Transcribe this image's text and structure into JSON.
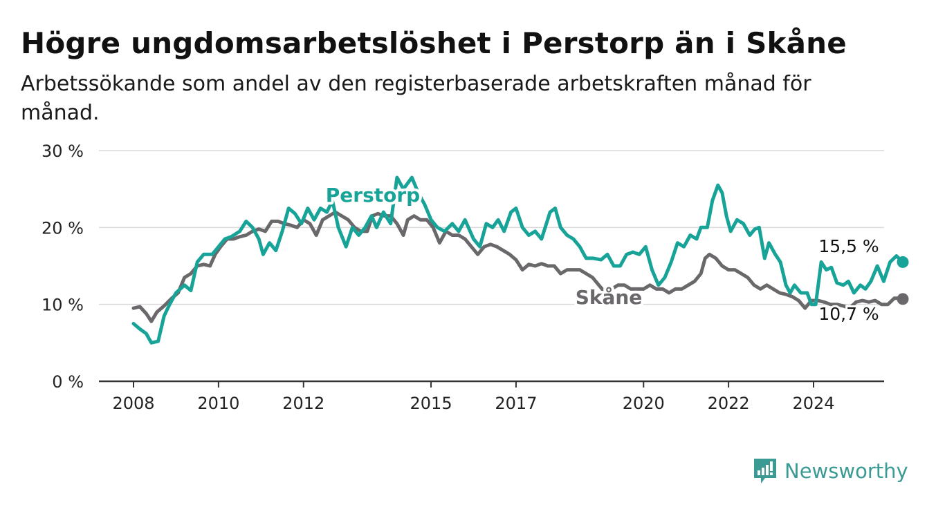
{
  "title": "Högre ungdomsarbetslöshet i Perstorp än i Skåne",
  "subtitle": "Arbetssökande som andel av den registerbaserade arbetskraften månad för månad.",
  "brand": {
    "name": "Newsworthy"
  },
  "colors": {
    "perstorp": "#17a397",
    "skane": "#6b686c",
    "grid": "#d9d9d9",
    "axis": "#333333"
  },
  "chart_data": {
    "type": "line",
    "ylim": [
      0,
      30
    ],
    "y_ticks": [
      0,
      10,
      20,
      30
    ],
    "y_tick_labels": [
      "0 %",
      "10 %",
      "20 %",
      "30 %"
    ],
    "x_ticks": [
      2008,
      2010,
      2012,
      2015,
      2017,
      2020,
      2022,
      2024
    ],
    "x_tick_labels": [
      "2008",
      "2010",
      "2012",
      "2015",
      "2017",
      "2020",
      "2022",
      "2024"
    ],
    "grid": true,
    "series": [
      {
        "name": "Perstorp",
        "end_label": "15,5 %",
        "points": [
          [
            2008.0,
            7.5
          ],
          [
            2008.15,
            6.8
          ],
          [
            2008.3,
            6.2
          ],
          [
            2008.42,
            5.0
          ],
          [
            2008.58,
            5.2
          ],
          [
            2008.72,
            8.5
          ],
          [
            2008.85,
            10.0
          ],
          [
            2009.0,
            11.5
          ],
          [
            2009.2,
            12.5
          ],
          [
            2009.35,
            11.8
          ],
          [
            2009.5,
            15.5
          ],
          [
            2009.65,
            16.5
          ],
          [
            2009.85,
            16.5
          ],
          [
            2010.0,
            17.5
          ],
          [
            2010.15,
            18.5
          ],
          [
            2010.3,
            18.8
          ],
          [
            2010.5,
            19.5
          ],
          [
            2010.65,
            20.8
          ],
          [
            2010.8,
            20.0
          ],
          [
            2010.95,
            18.5
          ],
          [
            2011.05,
            16.5
          ],
          [
            2011.2,
            18.0
          ],
          [
            2011.35,
            17.0
          ],
          [
            2011.5,
            19.5
          ],
          [
            2011.65,
            22.5
          ],
          [
            2011.8,
            21.8
          ],
          [
            2011.95,
            20.5
          ],
          [
            2012.1,
            22.5
          ],
          [
            2012.25,
            21.0
          ],
          [
            2012.4,
            22.5
          ],
          [
            2012.55,
            22.0
          ],
          [
            2012.68,
            23.5
          ],
          [
            2012.82,
            20.0
          ],
          [
            2013.0,
            17.5
          ],
          [
            2013.15,
            20.0
          ],
          [
            2013.3,
            19.0
          ],
          [
            2013.45,
            20.0
          ],
          [
            2013.6,
            21.5
          ],
          [
            2013.72,
            20.0
          ],
          [
            2013.88,
            22.0
          ],
          [
            2014.05,
            20.5
          ],
          [
            2014.2,
            26.5
          ],
          [
            2014.35,
            25.0
          ],
          [
            2014.55,
            26.5
          ],
          [
            2014.7,
            24.5
          ],
          [
            2014.85,
            23.0
          ],
          [
            2015.0,
            21.0
          ],
          [
            2015.15,
            20.0
          ],
          [
            2015.32,
            19.5
          ],
          [
            2015.5,
            20.5
          ],
          [
            2015.65,
            19.5
          ],
          [
            2015.8,
            21.0
          ],
          [
            2016.0,
            18.5
          ],
          [
            2016.15,
            17.5
          ],
          [
            2016.3,
            20.5
          ],
          [
            2016.45,
            20.0
          ],
          [
            2016.58,
            21.0
          ],
          [
            2016.72,
            19.5
          ],
          [
            2016.88,
            22.0
          ],
          [
            2017.0,
            22.5
          ],
          [
            2017.15,
            20.0
          ],
          [
            2017.3,
            19.0
          ],
          [
            2017.45,
            19.5
          ],
          [
            2017.6,
            18.5
          ],
          [
            2017.8,
            22.0
          ],
          [
            2017.92,
            22.5
          ],
          [
            2018.05,
            20.0
          ],
          [
            2018.2,
            19.0
          ],
          [
            2018.35,
            18.5
          ],
          [
            2018.5,
            17.5
          ],
          [
            2018.65,
            16.0
          ],
          [
            2018.82,
            16.0
          ],
          [
            2019.0,
            15.8
          ],
          [
            2019.15,
            16.5
          ],
          [
            2019.3,
            15.0
          ],
          [
            2019.45,
            15.0
          ],
          [
            2019.6,
            16.5
          ],
          [
            2019.75,
            16.8
          ],
          [
            2019.9,
            16.5
          ],
          [
            2020.05,
            17.5
          ],
          [
            2020.2,
            14.5
          ],
          [
            2020.35,
            12.5
          ],
          [
            2020.5,
            13.5
          ],
          [
            2020.65,
            15.5
          ],
          [
            2020.8,
            18.0
          ],
          [
            2020.95,
            17.5
          ],
          [
            2021.1,
            19.0
          ],
          [
            2021.25,
            18.5
          ],
          [
            2021.35,
            20.0
          ],
          [
            2021.5,
            20.0
          ],
          [
            2021.62,
            23.5
          ],
          [
            2021.75,
            25.5
          ],
          [
            2021.85,
            24.5
          ],
          [
            2021.95,
            21.5
          ],
          [
            2022.05,
            19.5
          ],
          [
            2022.2,
            21.0
          ],
          [
            2022.35,
            20.5
          ],
          [
            2022.5,
            19.0
          ],
          [
            2022.62,
            19.8
          ],
          [
            2022.72,
            20.0
          ],
          [
            2022.85,
            16.0
          ],
          [
            2022.95,
            18.0
          ],
          [
            2023.1,
            16.5
          ],
          [
            2023.22,
            15.5
          ],
          [
            2023.35,
            12.5
          ],
          [
            2023.45,
            11.5
          ],
          [
            2023.55,
            12.5
          ],
          [
            2023.7,
            11.5
          ],
          [
            2023.85,
            11.5
          ],
          [
            2023.95,
            10.0
          ],
          [
            2024.05,
            10.0
          ],
          [
            2024.18,
            15.5
          ],
          [
            2024.3,
            14.5
          ],
          [
            2024.42,
            14.8
          ],
          [
            2024.55,
            12.8
          ],
          [
            2024.7,
            12.5
          ],
          [
            2024.82,
            13.0
          ],
          [
            2024.95,
            11.5
          ],
          [
            2025.1,
            12.5
          ],
          [
            2025.22,
            12.0
          ],
          [
            2025.35,
            13.0
          ],
          [
            2025.5,
            15.0
          ],
          [
            2025.65,
            13.0
          ],
          [
            2025.8,
            15.5
          ],
          [
            2025.95,
            16.3
          ],
          [
            2026.1,
            15.5
          ]
        ]
      },
      {
        "name": "Skåne",
        "end_label": "10,7 %",
        "points": [
          [
            2008.0,
            9.5
          ],
          [
            2008.15,
            9.7
          ],
          [
            2008.3,
            8.8
          ],
          [
            2008.42,
            7.8
          ],
          [
            2008.55,
            9.0
          ],
          [
            2008.72,
            9.8
          ],
          [
            2008.9,
            10.8
          ],
          [
            2009.05,
            11.5
          ],
          [
            2009.2,
            13.5
          ],
          [
            2009.35,
            14.0
          ],
          [
            2009.5,
            15.0
          ],
          [
            2009.65,
            15.2
          ],
          [
            2009.8,
            15.0
          ],
          [
            2009.92,
            16.5
          ],
          [
            2010.05,
            17.5
          ],
          [
            2010.2,
            18.5
          ],
          [
            2010.35,
            18.5
          ],
          [
            2010.5,
            18.8
          ],
          [
            2010.65,
            19.0
          ],
          [
            2010.8,
            19.5
          ],
          [
            2010.95,
            19.8
          ],
          [
            2011.1,
            19.5
          ],
          [
            2011.25,
            20.8
          ],
          [
            2011.4,
            20.8
          ],
          [
            2011.55,
            20.5
          ],
          [
            2011.7,
            20.3
          ],
          [
            2011.85,
            20.0
          ],
          [
            2012.0,
            21.0
          ],
          [
            2012.15,
            20.5
          ],
          [
            2012.3,
            19.0
          ],
          [
            2012.45,
            21.0
          ],
          [
            2012.6,
            21.5
          ],
          [
            2012.75,
            22.0
          ],
          [
            2012.9,
            21.5
          ],
          [
            2013.05,
            21.0
          ],
          [
            2013.2,
            20.0
          ],
          [
            2013.35,
            19.5
          ],
          [
            2013.5,
            19.5
          ],
          [
            2013.62,
            21.5
          ],
          [
            2013.75,
            21.8
          ],
          [
            2013.9,
            21.5
          ],
          [
            2014.05,
            21.5
          ],
          [
            2014.2,
            20.5
          ],
          [
            2014.35,
            19.0
          ],
          [
            2014.45,
            21.0
          ],
          [
            2014.6,
            21.5
          ],
          [
            2014.75,
            21.0
          ],
          [
            2014.9,
            21.0
          ],
          [
            2015.05,
            20.0
          ],
          [
            2015.2,
            18.0
          ],
          [
            2015.35,
            19.5
          ],
          [
            2015.5,
            19.0
          ],
          [
            2015.65,
            19.0
          ],
          [
            2015.8,
            18.5
          ],
          [
            2015.95,
            17.5
          ],
          [
            2016.1,
            16.5
          ],
          [
            2016.25,
            17.5
          ],
          [
            2016.4,
            17.8
          ],
          [
            2016.55,
            17.5
          ],
          [
            2016.7,
            17.0
          ],
          [
            2016.85,
            16.5
          ],
          [
            2017.0,
            15.8
          ],
          [
            2017.15,
            14.5
          ],
          [
            2017.3,
            15.2
          ],
          [
            2017.45,
            15.0
          ],
          [
            2017.6,
            15.3
          ],
          [
            2017.75,
            15.0
          ],
          [
            2017.9,
            15.0
          ],
          [
            2018.05,
            14.0
          ],
          [
            2018.2,
            14.5
          ],
          [
            2018.35,
            14.5
          ],
          [
            2018.5,
            14.5
          ],
          [
            2018.65,
            14.0
          ],
          [
            2018.8,
            13.5
          ],
          [
            2018.95,
            12.5
          ],
          [
            2019.1,
            11.5
          ],
          [
            2019.25,
            12.0
          ],
          [
            2019.4,
            12.5
          ],
          [
            2019.55,
            12.5
          ],
          [
            2019.7,
            12.0
          ],
          [
            2019.85,
            12.0
          ],
          [
            2020.0,
            12.0
          ],
          [
            2020.15,
            12.5
          ],
          [
            2020.3,
            12.0
          ],
          [
            2020.45,
            12.0
          ],
          [
            2020.6,
            11.5
          ],
          [
            2020.75,
            12.0
          ],
          [
            2020.9,
            12.0
          ],
          [
            2021.05,
            12.5
          ],
          [
            2021.2,
            13.0
          ],
          [
            2021.35,
            14.0
          ],
          [
            2021.45,
            16.0
          ],
          [
            2021.55,
            16.5
          ],
          [
            2021.7,
            16.0
          ],
          [
            2021.85,
            15.0
          ],
          [
            2022.0,
            14.5
          ],
          [
            2022.15,
            14.5
          ],
          [
            2022.3,
            14.0
          ],
          [
            2022.45,
            13.5
          ],
          [
            2022.6,
            12.5
          ],
          [
            2022.75,
            12.0
          ],
          [
            2022.9,
            12.5
          ],
          [
            2023.05,
            12.0
          ],
          [
            2023.2,
            11.5
          ],
          [
            2023.35,
            11.3
          ],
          [
            2023.5,
            11.0
          ],
          [
            2023.65,
            10.5
          ],
          [
            2023.8,
            9.5
          ],
          [
            2023.95,
            10.5
          ],
          [
            2024.1,
            10.5
          ],
          [
            2024.25,
            10.3
          ],
          [
            2024.4,
            10.0
          ],
          [
            2024.55,
            10.0
          ],
          [
            2024.7,
            9.8
          ],
          [
            2024.85,
            9.5
          ],
          [
            2025.0,
            10.3
          ],
          [
            2025.15,
            10.5
          ],
          [
            2025.3,
            10.3
          ],
          [
            2025.45,
            10.5
          ],
          [
            2025.6,
            10.0
          ],
          [
            2025.75,
            10.0
          ],
          [
            2025.9,
            10.8
          ],
          [
            2026.05,
            10.8
          ],
          [
            2026.1,
            10.7
          ]
        ]
      }
    ]
  }
}
